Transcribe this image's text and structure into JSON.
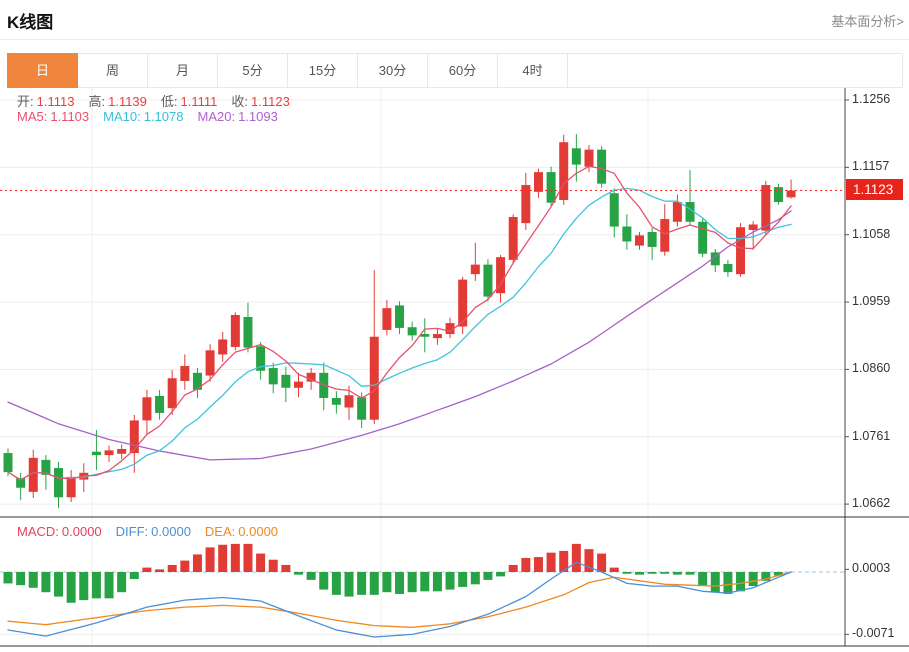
{
  "page": {
    "title": "K线图",
    "link": "基本面分析>"
  },
  "tabs": {
    "items": [
      {
        "label": "日",
        "active": true
      },
      {
        "label": "周",
        "active": false
      },
      {
        "label": "月",
        "active": false
      },
      {
        "label": "5分",
        "active": false
      },
      {
        "label": "15分",
        "active": false
      },
      {
        "label": "30分",
        "active": false
      },
      {
        "label": "60分",
        "active": false
      },
      {
        "label": "4时",
        "active": false
      }
    ]
  },
  "legend": {
    "ohlc": [
      {
        "label": "开:",
        "value": "1.1113"
      },
      {
        "label": "高:",
        "value": "1.1139"
      },
      {
        "label": "低:",
        "value": "1.1111"
      },
      {
        "label": "收:",
        "value": "1.1123"
      }
    ],
    "ma": [
      {
        "label": "MA5:",
        "value": "1.1103",
        "color": "#e8506e"
      },
      {
        "label": "MA10:",
        "value": "1.1078",
        "color": "#36bfd6"
      },
      {
        "label": "MA20:",
        "value": "1.1093",
        "color": "#b05fd0"
      }
    ]
  },
  "macd_legend": [
    {
      "label": "MACD:",
      "value": "0.0000",
      "color": "#e8405e"
    },
    {
      "label": "DIFF:",
      "value": "0.0000",
      "color": "#4a90d9"
    },
    {
      "label": "DEA:",
      "value": "0.0000",
      "color": "#ee8a22"
    }
  ],
  "axis": {
    "main_ticks": [
      "1.1256",
      "1.1157",
      "1.1058",
      "1.0959",
      "1.0860",
      "1.0761",
      "1.0662"
    ],
    "macd_ticks": [
      "0.0003",
      "-0.0071"
    ],
    "current_price_label": "1.1123"
  },
  "chart_data": {
    "type": "candlestick+macd",
    "title": "K线图",
    "period_selected": "日",
    "ohlc_legend": {
      "open": 1.1113,
      "high": 1.1139,
      "low": 1.1111,
      "close": 1.1123
    },
    "ma_legend": {
      "ma5": 1.1103,
      "ma10": 1.1078,
      "ma20": 1.1093
    },
    "current_price": 1.1123,
    "y_ticks": [
      1.1256,
      1.1157,
      1.1058,
      1.0959,
      1.086,
      1.0761,
      1.0662
    ],
    "colors": {
      "up": "#e23b35",
      "down": "#27a346",
      "ma5": "#e8506e",
      "ma10": "#40c4d8",
      "ma20": "#a661c9",
      "diff": "#4a90d9",
      "dea": "#ee8a22",
      "price_line": "#ff2a2a",
      "badge": "#e8231a",
      "grid": "#ececec",
      "axis": "#444"
    },
    "candles": [
      [
        1.0737,
        1.0744,
        1.0703,
        1.0709
      ],
      [
        1.07,
        1.0708,
        1.0668,
        1.0686
      ],
      [
        1.068,
        1.0742,
        1.0671,
        1.073
      ],
      [
        1.0727,
        1.0734,
        1.0683,
        1.0705
      ],
      [
        1.0715,
        1.0724,
        1.0656,
        1.0672
      ],
      [
        1.0672,
        1.0712,
        1.0665,
        1.0702
      ],
      [
        1.0698,
        1.0722,
        1.068,
        1.0708
      ],
      [
        1.0739,
        1.0771,
        1.0712,
        1.0734
      ],
      [
        1.0734,
        1.0748,
        1.0724,
        1.0741
      ],
      [
        1.0736,
        1.075,
        1.0728,
        1.0743
      ],
      [
        1.0737,
        1.0793,
        1.0708,
        1.0785
      ],
      [
        1.0785,
        1.083,
        1.0764,
        1.0819
      ],
      [
        1.0821,
        1.083,
        1.0786,
        1.0796
      ],
      [
        1.0803,
        1.0859,
        1.0793,
        1.0847
      ],
      [
        1.0843,
        1.0882,
        1.083,
        1.0865
      ],
      [
        1.0855,
        1.0862,
        1.0818,
        1.083
      ],
      [
        1.0851,
        1.0897,
        1.0842,
        1.0888
      ],
      [
        1.0882,
        1.0915,
        1.0871,
        1.0904
      ],
      [
        1.0893,
        1.0944,
        1.0888,
        1.094
      ],
      [
        1.0937,
        1.0958,
        1.0885,
        1.0892
      ],
      [
        1.0894,
        1.09,
        1.0845,
        1.0858
      ],
      [
        1.0862,
        1.087,
        1.0825,
        1.0838
      ],
      [
        1.0852,
        1.0864,
        1.0812,
        1.0833
      ],
      [
        1.0833,
        1.0855,
        1.0819,
        1.0842
      ],
      [
        1.0842,
        1.0862,
        1.083,
        1.0855
      ],
      [
        1.0855,
        1.087,
        1.08,
        1.0818
      ],
      [
        1.0818,
        1.0828,
        1.0795,
        1.0808
      ],
      [
        1.0804,
        1.0836,
        1.0786,
        1.0822
      ],
      [
        1.0819,
        1.0826,
        1.0774,
        1.0786
      ],
      [
        1.0786,
        1.1006,
        1.078,
        1.0908
      ],
      [
        1.0918,
        1.0962,
        1.091,
        1.095
      ],
      [
        1.0954,
        1.096,
        1.0912,
        1.0921
      ],
      [
        1.0922,
        1.093,
        1.0902,
        1.091
      ],
      [
        1.0912,
        1.0935,
        1.0885,
        1.0908
      ],
      [
        1.0906,
        1.092,
        1.0896,
        1.0912
      ],
      [
        1.0912,
        1.0936,
        1.0906,
        1.0928
      ],
      [
        1.0923,
        1.0996,
        1.0912,
        1.0992
      ],
      [
        1.1,
        1.1046,
        1.099,
        1.1014
      ],
      [
        1.1014,
        1.1022,
        1.096,
        1.0967
      ],
      [
        1.0972,
        1.1028,
        1.0958,
        1.1025
      ],
      [
        1.1021,
        1.1088,
        1.1016,
        1.1084
      ],
      [
        1.1075,
        1.1149,
        1.1065,
        1.1131
      ],
      [
        1.1121,
        1.1155,
        1.1112,
        1.115
      ],
      [
        1.115,
        1.1158,
        1.11,
        1.1105
      ],
      [
        1.1109,
        1.1205,
        1.1102,
        1.1194
      ],
      [
        1.1185,
        1.1206,
        1.1136,
        1.1161
      ],
      [
        1.1158,
        1.119,
        1.115,
        1.1183
      ],
      [
        1.1183,
        1.1188,
        1.1127,
        1.1133
      ],
      [
        1.1119,
        1.1126,
        1.1054,
        1.107
      ],
      [
        1.107,
        1.1088,
        1.1036,
        1.1048
      ],
      [
        1.1042,
        1.1062,
        1.1036,
        1.1057
      ],
      [
        1.1062,
        1.1068,
        1.1021,
        1.104
      ],
      [
        1.1033,
        1.1103,
        1.1027,
        1.1081
      ],
      [
        1.1077,
        1.1117,
        1.107,
        1.1106
      ],
      [
        1.1106,
        1.1153,
        1.1073,
        1.1077
      ],
      [
        1.1077,
        1.1083,
        1.1025,
        1.103
      ],
      [
        1.1032,
        1.1037,
        1.1003,
        1.1013
      ],
      [
        1.1015,
        1.1021,
        1.0996,
        1.1003
      ],
      [
        1.1,
        1.1075,
        1.0996,
        1.1069
      ],
      [
        1.1065,
        1.1078,
        1.1036,
        1.1073
      ],
      [
        1.1064,
        1.1137,
        1.1057,
        1.1131
      ],
      [
        1.1128,
        1.1133,
        1.1102,
        1.1106
      ],
      [
        1.1113,
        1.1139,
        1.1111,
        1.1123
      ]
    ],
    "ma20_points": [
      [
        0,
        1.0812
      ],
      [
        4,
        1.078
      ],
      [
        8,
        1.0757
      ],
      [
        12,
        1.074
      ],
      [
        16,
        1.0727
      ],
      [
        20,
        1.0729
      ],
      [
        24,
        1.0743
      ],
      [
        28,
        1.0763
      ],
      [
        31,
        1.078
      ],
      [
        34,
        1.08
      ],
      [
        37,
        1.082
      ],
      [
        40,
        1.0843
      ],
      [
        43,
        1.0868
      ],
      [
        46,
        1.09
      ],
      [
        49,
        1.0938
      ],
      [
        52,
        1.0975
      ],
      [
        55,
        1.1012
      ],
      [
        57,
        1.104
      ],
      [
        59,
        1.1062
      ],
      [
        61,
        1.108
      ],
      [
        62,
        1.1093
      ]
    ],
    "macd": {
      "y_ticks": [
        0.0003,
        -0.0071
      ],
      "histogram": [
        -0.0013,
        -0.0015,
        -0.0018,
        -0.0023,
        -0.0028,
        -0.0035,
        -0.0032,
        -0.003,
        -0.003,
        -0.0023,
        -0.0008,
        0.0005,
        0.0003,
        0.0008,
        0.0013,
        0.002,
        0.0028,
        0.0031,
        0.0032,
        0.0032,
        0.0021,
        0.0014,
        0.0008,
        -0.0003,
        -0.0009,
        -0.002,
        -0.0026,
        -0.0028,
        -0.0026,
        -0.0026,
        -0.0023,
        -0.0025,
        -0.0023,
        -0.0022,
        -0.0022,
        -0.002,
        -0.0017,
        -0.0014,
        -0.0009,
        -0.0005,
        0.0008,
        0.0016,
        0.0017,
        0.0022,
        0.0024,
        0.0032,
        0.0026,
        0.0021,
        0.0005,
        -0.0002,
        -0.0003,
        -0.0002,
        -0.0002,
        -0.0003,
        -0.0003,
        -0.0016,
        -0.0023,
        -0.0025,
        -0.0022,
        -0.0016,
        -0.001,
        -0.0004,
        0.0
      ],
      "diff_points": [
        [
          0,
          -0.0066
        ],
        [
          3,
          -0.0073
        ],
        [
          7,
          -0.0058
        ],
        [
          11,
          -0.004
        ],
        [
          14,
          -0.0032
        ],
        [
          17,
          -0.0029
        ],
        [
          20,
          -0.0033
        ],
        [
          23,
          -0.005
        ],
        [
          26,
          -0.0066
        ],
        [
          29,
          -0.0074
        ],
        [
          32,
          -0.0071
        ],
        [
          35,
          -0.0062
        ],
        [
          38,
          -0.0048
        ],
        [
          41,
          -0.0028
        ],
        [
          43,
          -0.0008
        ],
        [
          45,
          0.0011
        ],
        [
          47,
          0.0
        ],
        [
          49,
          -0.0013
        ],
        [
          51,
          -0.0016
        ],
        [
          53,
          -0.0016
        ],
        [
          55,
          -0.0022
        ],
        [
          57,
          -0.0024
        ],
        [
          59,
          -0.0018
        ],
        [
          61,
          -0.0006
        ],
        [
          62,
          0.0
        ]
      ],
      "dea_points": [
        [
          0,
          -0.0056
        ],
        [
          3,
          -0.006
        ],
        [
          7,
          -0.0052
        ],
        [
          11,
          -0.0044
        ],
        [
          14,
          -0.004
        ],
        [
          17,
          -0.0038
        ],
        [
          20,
          -0.004
        ],
        [
          23,
          -0.0047
        ],
        [
          26,
          -0.0055
        ],
        [
          29,
          -0.0061
        ],
        [
          32,
          -0.0063
        ],
        [
          35,
          -0.0059
        ],
        [
          38,
          -0.0051
        ],
        [
          41,
          -0.004
        ],
        [
          44,
          -0.0026
        ],
        [
          46,
          -0.0012
        ],
        [
          48,
          -0.0006
        ],
        [
          50,
          -0.001
        ],
        [
          52,
          -0.0014
        ],
        [
          54,
          -0.0015
        ],
        [
          56,
          -0.0016
        ],
        [
          58,
          -0.0013
        ],
        [
          60,
          -0.0008
        ],
        [
          62,
          0.0
        ]
      ]
    },
    "grid_vertical_x": [
      92,
      381,
      648
    ]
  }
}
